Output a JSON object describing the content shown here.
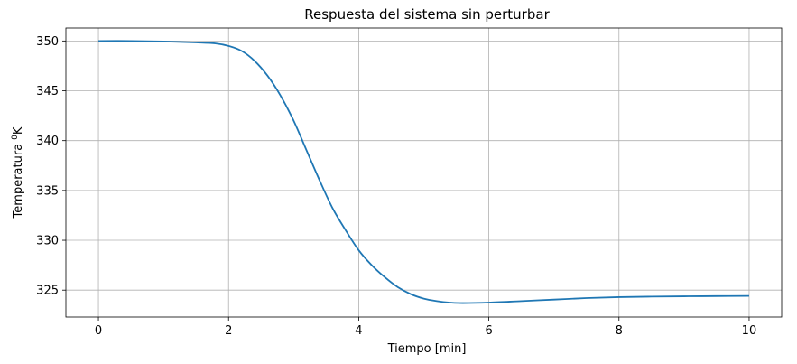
{
  "chart_data": {
    "type": "line",
    "title": "Respuesta del sistema sin perturbar",
    "xlabel": "Tiempo [min]",
    "ylabel": "Temperatura",
    "ylabel_sup": "0",
    "ylabel_unit": "K",
    "xlim": [
      -0.5,
      10.5
    ],
    "ylim": [
      322.3,
      351.3
    ],
    "xticks": [
      0,
      2,
      4,
      6,
      8,
      10
    ],
    "yticks": [
      325,
      330,
      335,
      340,
      345,
      350
    ],
    "grid": true,
    "line_color": "#1f77b4",
    "grid_color": "#b0b0b0",
    "series": [
      {
        "x": [
          0,
          0.5,
          1.0,
          1.5,
          1.8,
          2.0,
          2.2,
          2.4,
          2.6,
          2.8,
          3.0,
          3.2,
          3.4,
          3.6,
          3.8,
          4.0,
          4.2,
          4.4,
          4.6,
          4.8,
          5.0,
          5.2,
          5.4,
          5.6,
          6.0,
          6.5,
          7.0,
          7.5,
          8.0,
          8.5,
          9.0,
          9.5,
          10.0
        ],
        "y": [
          350.0,
          350.0,
          349.95,
          349.85,
          349.75,
          349.5,
          349.0,
          348.0,
          346.5,
          344.5,
          342.0,
          339.0,
          336.0,
          333.2,
          331.0,
          329.0,
          327.5,
          326.3,
          325.3,
          324.6,
          324.15,
          323.9,
          323.75,
          323.7,
          323.75,
          323.9,
          324.05,
          324.2,
          324.3,
          324.35,
          324.38,
          324.4,
          324.42
        ]
      }
    ]
  }
}
